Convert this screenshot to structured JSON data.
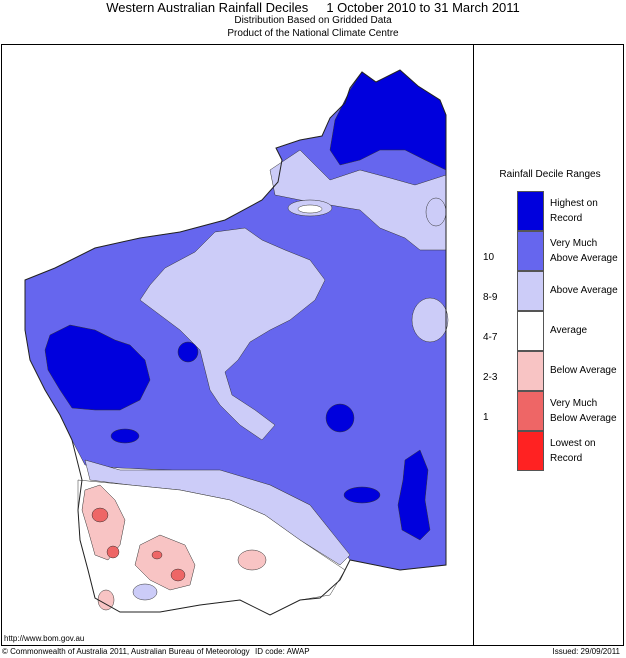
{
  "header": {
    "title": "Western Australian Rainfall Deciles     1 October 2010 to 31 March 2011",
    "subtitle1": "Distribution Based on Gridded Data",
    "subtitle2": "Product of the National Climate Centre"
  },
  "legend": {
    "title": "Rainfall Decile Ranges",
    "items": [
      {
        "label1": "Highest on",
        "label2": "Record",
        "range": "",
        "color": "#0000dd"
      },
      {
        "label1": "Very Much",
        "label2": "Above Average",
        "range": "10",
        "color": "#6666ee"
      },
      {
        "label1": "Above Average",
        "label2": "",
        "range": "8-9",
        "color": "#ccccf8"
      },
      {
        "label1": "Average",
        "label2": "",
        "range": "4-7",
        "color": "#ffffff"
      },
      {
        "label1": "Below Average",
        "label2": "",
        "range": "2-3",
        "color": "#f8c4c4"
      },
      {
        "label1": "Very Much",
        "label2": "Below Average",
        "range": "1",
        "color": "#ee6666"
      },
      {
        "label1": "Lowest on",
        "label2": "Record",
        "range": "",
        "color": "#ff2222"
      }
    ]
  },
  "footer": {
    "url": "http://www.bom.gov.au",
    "copyright": "© Commonwealth of Australia 2011, Australian Bureau of Meteorology",
    "id_code": "ID code: AWAP",
    "issued": "Issued: 29/09/2011"
  },
  "colors": {
    "highest": "#0000dd",
    "very_much_above": "#6666ee",
    "above": "#ccccf8",
    "average": "#ffffff",
    "below": "#f8c4c4",
    "very_much_below": "#ee6666",
    "lowest": "#ff2222"
  }
}
